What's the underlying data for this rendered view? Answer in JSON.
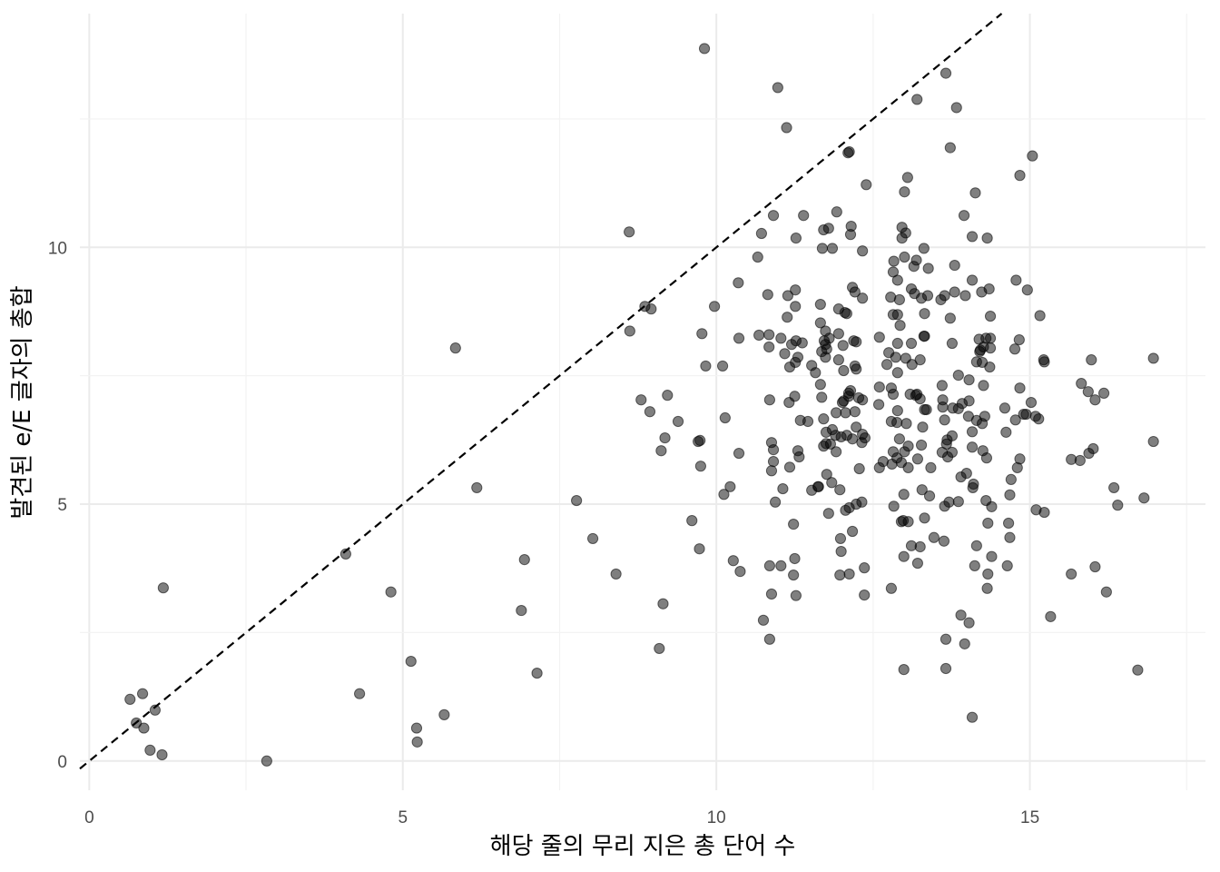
{
  "chart_data": {
    "type": "scatter",
    "title": "",
    "xlabel": "해당 줄의 무리 지은 총 단어 수",
    "ylabel": "발견된 e/E 글자의 총합",
    "xlim": [
      -0.15,
      17.8
    ],
    "ylim": [
      -0.57,
      14.55
    ],
    "x_ticks": [
      "0",
      "5",
      "10",
      "15"
    ],
    "y_ticks": [
      "0",
      "5",
      "10"
    ],
    "grid": true,
    "point_color": "#000000",
    "point_alpha": 0.5,
    "reference_line": {
      "type": "y=x",
      "style": "dashed",
      "color": "#000000"
    },
    "points": [
      [
        0.65,
        1.2
      ],
      [
        0.85,
        1.31
      ],
      [
        0.75,
        0.74
      ],
      [
        0.87,
        0.64
      ],
      [
        1.05,
        0.99
      ],
      [
        0.97,
        0.21
      ],
      [
        1.16,
        0.12
      ],
      [
        1.18,
        3.37
      ],
      [
        2.83,
        0.0
      ],
      [
        4.09,
        4.03
      ],
      [
        4.31,
        1.31
      ],
      [
        4.81,
        3.29
      ],
      [
        5.13,
        1.94
      ],
      [
        5.22,
        0.64
      ],
      [
        5.23,
        0.37
      ],
      [
        5.66,
        0.9
      ],
      [
        5.84,
        8.04
      ],
      [
        6.18,
        5.32
      ],
      [
        6.94,
        3.92
      ],
      [
        6.89,
        2.93
      ],
      [
        7.14,
        1.71
      ],
      [
        7.77,
        5.07
      ],
      [
        8.03,
        4.33
      ],
      [
        8.4,
        3.64
      ],
      [
        8.61,
        10.3
      ],
      [
        8.62,
        8.37
      ],
      [
        8.8,
        7.03
      ],
      [
        8.86,
        8.85
      ],
      [
        8.96,
        8.8
      ],
      [
        8.94,
        6.8
      ],
      [
        9.12,
        6.04
      ],
      [
        9.18,
        6.29
      ],
      [
        9.22,
        7.12
      ],
      [
        9.15,
        3.06
      ],
      [
        9.09,
        2.19
      ],
      [
        9.39,
        6.61
      ],
      [
        9.61,
        4.68
      ],
      [
        9.71,
        6.22
      ],
      [
        9.74,
        6.24
      ],
      [
        9.73,
        4.13
      ],
      [
        9.75,
        5.74
      ],
      [
        9.77,
        8.32
      ],
      [
        9.83,
        7.69
      ],
      [
        9.81,
        13.87
      ],
      [
        9.97,
        8.85
      ],
      [
        10.1,
        7.69
      ],
      [
        10.12,
        5.19
      ],
      [
        10.14,
        6.68
      ],
      [
        10.22,
        5.34
      ],
      [
        10.27,
        3.9
      ],
      [
        10.38,
        3.69
      ],
      [
        10.35,
        9.31
      ],
      [
        10.36,
        8.23
      ],
      [
        10.36,
        5.99
      ],
      [
        10.66,
        9.81
      ],
      [
        10.68,
        8.29
      ],
      [
        10.72,
        10.27
      ],
      [
        10.75,
        2.74
      ],
      [
        10.82,
        9.08
      ],
      [
        10.84,
        8.3
      ],
      [
        10.85,
        7.03
      ],
      [
        10.84,
        8.06
      ],
      [
        10.85,
        3.8
      ],
      [
        10.85,
        2.37
      ],
      [
        10.88,
        6.2
      ],
      [
        10.88,
        5.65
      ],
      [
        10.88,
        3.25
      ],
      [
        10.91,
        10.62
      ],
      [
        10.94,
        5.04
      ],
      [
        10.91,
        6.06
      ],
      [
        10.91,
        5.83
      ],
      [
        10.98,
        13.11
      ],
      [
        11.03,
        8.23
      ],
      [
        11.03,
        3.8
      ],
      [
        11.06,
        5.3
      ],
      [
        11.09,
        7.93
      ],
      [
        11.12,
        12.33
      ],
      [
        11.13,
        8.64
      ],
      [
        11.14,
        9.06
      ],
      [
        11.16,
        6.98
      ],
      [
        11.17,
        7.67
      ],
      [
        11.17,
        5.72
      ],
      [
        11.2,
        8.11
      ],
      [
        11.23,
        3.62
      ],
      [
        11.23,
        4.61
      ],
      [
        11.25,
        3.94
      ],
      [
        11.26,
        8.85
      ],
      [
        11.26,
        9.17
      ],
      [
        11.25,
        7.1
      ],
      [
        11.26,
        7.76
      ],
      [
        11.27,
        3.22
      ],
      [
        11.27,
        10.18
      ],
      [
        11.27,
        8.18
      ],
      [
        11.3,
        7.86
      ],
      [
        11.3,
        6.04
      ],
      [
        11.32,
        5.92
      ],
      [
        11.34,
        6.63
      ],
      [
        11.37,
        8.14
      ],
      [
        11.39,
        10.62
      ],
      [
        11.46,
        6.61
      ],
      [
        11.52,
        7.7
      ],
      [
        11.52,
        5.27
      ],
      [
        11.58,
        7.56
      ],
      [
        11.62,
        5.34
      ],
      [
        11.63,
        5.34
      ],
      [
        11.66,
        8.89
      ],
      [
        11.66,
        8.53
      ],
      [
        11.66,
        7.33
      ],
      [
        11.68,
        7.97
      ],
      [
        11.68,
        7.08
      ],
      [
        11.69,
        9.98
      ],
      [
        11.71,
        6.66
      ],
      [
        11.71,
        6.13
      ],
      [
        11.71,
        10.34
      ],
      [
        11.72,
        8.18
      ],
      [
        11.74,
        7.86
      ],
      [
        11.74,
        8.11
      ],
      [
        11.74,
        8.37
      ],
      [
        11.75,
        6.18
      ],
      [
        11.75,
        6.4
      ],
      [
        11.76,
        8.02
      ],
      [
        11.76,
        5.58
      ],
      [
        11.79,
        10.37
      ],
      [
        11.8,
        8.23
      ],
      [
        11.82,
        6.17
      ],
      [
        11.79,
        4.82
      ],
      [
        11.84,
        5.42
      ],
      [
        11.85,
        9.98
      ],
      [
        11.85,
        6.45
      ],
      [
        11.9,
        6.34
      ],
      [
        11.91,
        6.02
      ],
      [
        11.91,
        6.78
      ],
      [
        11.92,
        10.69
      ],
      [
        11.95,
        7.81
      ],
      [
        11.95,
        8.8
      ],
      [
        11.95,
        8.32
      ],
      [
        11.97,
        5.28
      ],
      [
        11.97,
        3.62
      ],
      [
        11.98,
        4.33
      ],
      [
        11.99,
        4.08
      ],
      [
        11.99,
        6.31
      ],
      [
        12.01,
        6.98
      ],
      [
        12.02,
        8.09
      ],
      [
        12.03,
        7.01
      ],
      [
        12.03,
        7.6
      ],
      [
        12.05,
        8.73
      ],
      [
        12.06,
        4.88
      ],
      [
        12.06,
        6.78
      ],
      [
        12.08,
        8.71
      ],
      [
        12.08,
        6.34
      ],
      [
        12.1,
        11.84
      ],
      [
        12.11,
        7.16
      ],
      [
        12.11,
        7.1
      ],
      [
        12.12,
        4.93
      ],
      [
        12.12,
        11.86
      ],
      [
        12.12,
        3.64
      ],
      [
        12.14,
        10.25
      ],
      [
        12.14,
        7.21
      ],
      [
        12.15,
        10.41
      ],
      [
        12.17,
        6.27
      ],
      [
        12.17,
        9.22
      ],
      [
        12.17,
        4.47
      ],
      [
        12.19,
        8.18
      ],
      [
        12.21,
        6.8
      ],
      [
        12.21,
        9.13
      ],
      [
        12.21,
        7.69
      ],
      [
        12.23,
        5.0
      ],
      [
        12.23,
        8.16
      ],
      [
        12.23,
        7.63
      ],
      [
        12.23,
        6.5
      ],
      [
        12.27,
        7.07
      ],
      [
        12.28,
        5.69
      ],
      [
        12.32,
        6.2
      ],
      [
        12.32,
        5.04
      ],
      [
        12.33,
        9.93
      ],
      [
        12.33,
        9.01
      ],
      [
        12.33,
        7.03
      ],
      [
        12.33,
        6.36
      ],
      [
        12.36,
        3.23
      ],
      [
        12.36,
        3.76
      ],
      [
        12.37,
        6.29
      ],
      [
        12.39,
        11.22
      ],
      [
        12.59,
        6.94
      ],
      [
        12.6,
        5.71
      ],
      [
        12.6,
        8.25
      ],
      [
        12.6,
        7.28
      ],
      [
        12.66,
        5.83
      ],
      [
        12.72,
        7.72
      ],
      [
        12.75,
        7.95
      ],
      [
        12.79,
        6.61
      ],
      [
        12.78,
        9.03
      ],
      [
        12.79,
        7.26
      ],
      [
        12.79,
        3.36
      ],
      [
        12.8,
        5.78
      ],
      [
        12.82,
        7.14
      ],
      [
        12.82,
        8.69
      ],
      [
        12.82,
        6.02
      ],
      [
        12.82,
        9.52
      ],
      [
        12.83,
        9.73
      ],
      [
        12.83,
        4.96
      ],
      [
        12.86,
        7.86
      ],
      [
        12.88,
        5.9
      ],
      [
        12.88,
        6.59
      ],
      [
        12.89,
        8.13
      ],
      [
        12.89,
        7.56
      ],
      [
        12.89,
        9.36
      ],
      [
        12.89,
        8.69
      ],
      [
        12.89,
        6.82
      ],
      [
        12.92,
        6.27
      ],
      [
        12.92,
        8.98
      ],
      [
        12.93,
        8.48
      ],
      [
        12.95,
        4.66
      ],
      [
        12.95,
        5.81
      ],
      [
        12.96,
        10.18
      ],
      [
        12.96,
        10.39
      ],
      [
        12.98,
        4.68
      ],
      [
        12.99,
        3.98
      ],
      [
        12.99,
        1.78
      ],
      [
        12.99,
        5.19
      ],
      [
        13.0,
        6.02
      ],
      [
        13.0,
        11.08
      ],
      [
        13.0,
        9.81
      ],
      [
        13.02,
        10.28
      ],
      [
        13.02,
        7.84
      ],
      [
        13.03,
        6.57
      ],
      [
        13.05,
        11.36
      ],
      [
        13.06,
        6.13
      ],
      [
        13.06,
        5.71
      ],
      [
        13.06,
        4.66
      ],
      [
        13.09,
        7.14
      ],
      [
        13.11,
        9.19
      ],
      [
        13.11,
        8.13
      ],
      [
        13.11,
        4.19
      ],
      [
        13.12,
        7.72
      ],
      [
        13.15,
        9.63
      ],
      [
        13.16,
        9.1
      ],
      [
        13.18,
        7.12
      ],
      [
        13.19,
        9.75
      ],
      [
        13.2,
        12.88
      ],
      [
        13.2,
        7.14
      ],
      [
        13.21,
        3.85
      ],
      [
        13.21,
        5.88
      ],
      [
        13.25,
        7.05
      ],
      [
        13.25,
        4.17
      ],
      [
        13.25,
        7.81
      ],
      [
        13.27,
        9.01
      ],
      [
        13.27,
        6.15
      ],
      [
        13.28,
        5.28
      ],
      [
        13.29,
        6.5
      ],
      [
        13.31,
        9.98
      ],
      [
        13.31,
        8.27
      ],
      [
        13.32,
        4.73
      ],
      [
        13.32,
        8.27
      ],
      [
        13.32,
        8.71
      ],
      [
        13.32,
        6.84
      ],
      [
        13.35,
        6.84
      ],
      [
        13.37,
        9.06
      ],
      [
        13.38,
        9.59
      ],
      [
        13.4,
        5.16
      ],
      [
        13.42,
        5.71
      ],
      [
        13.47,
        4.35
      ],
      [
        13.58,
        8.98
      ],
      [
        13.6,
        7.31
      ],
      [
        13.6,
        6.01
      ],
      [
        13.61,
        7.03
      ],
      [
        13.61,
        6.89
      ],
      [
        13.63,
        4.28
      ],
      [
        13.64,
        4.96
      ],
      [
        13.64,
        9.06
      ],
      [
        13.64,
        6.64
      ],
      [
        13.66,
        13.39
      ],
      [
        13.66,
        2.37
      ],
      [
        13.66,
        1.8
      ],
      [
        13.67,
        6.17
      ],
      [
        13.68,
        6.25
      ],
      [
        13.69,
        5.92
      ],
      [
        13.71,
        5.04
      ],
      [
        13.73,
        8.62
      ],
      [
        13.73,
        11.94
      ],
      [
        13.76,
        6.33
      ],
      [
        13.76,
        8.13
      ],
      [
        13.76,
        6.01
      ],
      [
        13.77,
        6.87
      ],
      [
        13.8,
        9.65
      ],
      [
        13.8,
        9.13
      ],
      [
        13.83,
        12.72
      ],
      [
        13.86,
        7.51
      ],
      [
        13.86,
        6.86
      ],
      [
        13.86,
        5.05
      ],
      [
        13.9,
        5.53
      ],
      [
        13.9,
        2.84
      ],
      [
        13.92,
        6.96
      ],
      [
        13.95,
        10.62
      ],
      [
        13.96,
        2.28
      ],
      [
        13.97,
        9.06
      ],
      [
        13.99,
        5.6
      ],
      [
        14.02,
        6.71
      ],
      [
        14.03,
        7.01
      ],
      [
        14.03,
        2.69
      ],
      [
        14.03,
        7.42
      ],
      [
        14.08,
        9.36
      ],
      [
        14.08,
        6.41
      ],
      [
        14.08,
        6.11
      ],
      [
        14.08,
        0.85
      ],
      [
        14.08,
        10.21
      ],
      [
        14.09,
        5.32
      ],
      [
        14.1,
        5.39
      ],
      [
        14.12,
        3.8
      ],
      [
        14.13,
        11.06
      ],
      [
        14.15,
        6.63
      ],
      [
        14.15,
        4.19
      ],
      [
        14.15,
        7.77
      ],
      [
        14.19,
        8.21
      ],
      [
        14.2,
        7.97
      ],
      [
        14.21,
        8.0
      ],
      [
        14.23,
        9.13
      ],
      [
        14.24,
        6.57
      ],
      [
        14.24,
        7.76
      ],
      [
        14.25,
        6.04
      ],
      [
        14.26,
        8.06
      ],
      [
        14.26,
        7.31
      ],
      [
        14.28,
        6.71
      ],
      [
        14.3,
        5.07
      ],
      [
        14.3,
        8.23
      ],
      [
        14.31,
        5.9
      ],
      [
        14.32,
        10.18
      ],
      [
        14.32,
        3.36
      ],
      [
        14.33,
        4.63
      ],
      [
        14.33,
        3.64
      ],
      [
        14.35,
        9.19
      ],
      [
        14.36,
        7.67
      ],
      [
        14.37,
        8.23
      ],
      [
        14.37,
        8.04
      ],
      [
        14.37,
        8.66
      ],
      [
        14.39,
        4.95
      ],
      [
        14.39,
        3.98
      ],
      [
        14.6,
        6.87
      ],
      [
        14.62,
        6.4
      ],
      [
        14.64,
        3.8
      ],
      [
        14.66,
        4.63
      ],
      [
        14.68,
        5.18
      ],
      [
        14.68,
        4.35
      ],
      [
        14.7,
        5.48
      ],
      [
        14.76,
        8.02
      ],
      [
        14.77,
        6.64
      ],
      [
        14.78,
        9.36
      ],
      [
        14.8,
        5.71
      ],
      [
        14.83,
        8.2
      ],
      [
        14.84,
        11.4
      ],
      [
        14.84,
        7.26
      ],
      [
        14.84,
        5.88
      ],
      [
        14.9,
        6.75
      ],
      [
        14.96,
        9.17
      ],
      [
        15.02,
        6.98
      ],
      [
        14.94,
        6.75
      ],
      [
        15.04,
        11.78
      ],
      [
        15.1,
        4.89
      ],
      [
        15.09,
        6.71
      ],
      [
        15.14,
        6.66
      ],
      [
        15.16,
        8.67
      ],
      [
        15.23,
        4.84
      ],
      [
        15.22,
        7.81
      ],
      [
        15.23,
        7.77
      ],
      [
        15.33,
        2.81
      ],
      [
        15.66,
        3.64
      ],
      [
        15.66,
        5.87
      ],
      [
        15.8,
        5.85
      ],
      [
        15.82,
        7.35
      ],
      [
        15.93,
        7.19
      ],
      [
        15.94,
        5.99
      ],
      [
        15.98,
        7.81
      ],
      [
        16.04,
        3.78
      ],
      [
        16.04,
        7.03
      ],
      [
        16.18,
        7.16
      ],
      [
        16.22,
        3.29
      ],
      [
        16.34,
        5.32
      ],
      [
        16.4,
        4.98
      ],
      [
        16.72,
        1.77
      ],
      [
        16.82,
        5.12
      ],
      [
        16.97,
        6.22
      ],
      [
        16.97,
        7.84
      ],
      [
        16.01,
        6.08
      ]
    ]
  }
}
